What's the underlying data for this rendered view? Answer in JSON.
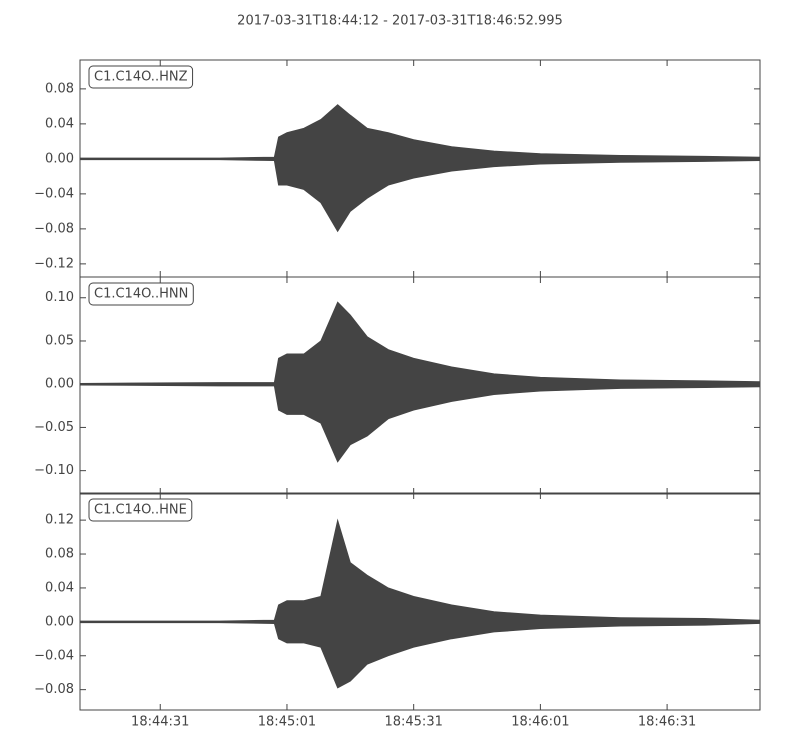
{
  "chart_data": {
    "type": "line",
    "title": "2017-03-31T18:44:12  -  2017-03-31T18:46:52.995",
    "color": "#444444",
    "x": [
      "18:44:12",
      "18:44:45",
      "18:44:58",
      "18:44:59",
      "18:45:01",
      "18:45:05",
      "18:45:09",
      "18:45:13",
      "18:45:16",
      "18:45:20",
      "18:45:25",
      "18:45:31",
      "18:45:40",
      "18:45:50",
      "18:46:01",
      "18:46:20",
      "18:46:40",
      "18:46:52.995"
    ],
    "xlim": [
      "18:44:12",
      "18:46:52.995"
    ],
    "xticks": [
      "18:44:31",
      "18:45:01",
      "18:45:31",
      "18:46:01",
      "18:46:31"
    ],
    "panels": [
      {
        "label": "C1.C14O..HNZ",
        "upper": [
          0.001,
          0.001,
          0.002,
          0.025,
          0.03,
          0.035,
          0.045,
          0.062,
          0.05,
          0.035,
          0.03,
          0.022,
          0.014,
          0.009,
          0.006,
          0.004,
          0.003,
          0.002
        ],
        "lower": [
          -0.001,
          -0.001,
          -0.002,
          -0.03,
          -0.03,
          -0.035,
          -0.05,
          -0.083,
          -0.06,
          -0.045,
          -0.03,
          -0.022,
          -0.014,
          -0.009,
          -0.006,
          -0.004,
          -0.003,
          -0.002
        ],
        "ylim": [
          -0.135,
          0.113
        ],
        "yticks": [
          {
            "value": -0.12,
            "label": "−0.12"
          },
          {
            "value": -0.08,
            "label": "−0.08"
          },
          {
            "value": -0.04,
            "label": "−0.04"
          },
          {
            "value": 0,
            "label": "0.00"
          },
          0.04,
          0.08
        ]
      },
      {
        "label": "C1.C14O..HNN",
        "upper": [
          0.001,
          0.002,
          0.002,
          0.03,
          0.035,
          0.035,
          0.05,
          0.095,
          0.08,
          0.055,
          0.04,
          0.03,
          0.02,
          0.012,
          0.008,
          0.005,
          0.004,
          0.003
        ],
        "lower": [
          -0.001,
          -0.002,
          -0.002,
          -0.03,
          -0.035,
          -0.035,
          -0.045,
          -0.09,
          -0.07,
          -0.06,
          -0.04,
          -0.03,
          -0.02,
          -0.012,
          -0.008,
          -0.005,
          -0.004,
          -0.003
        ],
        "ylim": [
          -0.127,
          0.124
        ],
        "yticks": [
          {
            "value": -0.1,
            "label": "−0.10"
          },
          {
            "value": -0.05,
            "label": "−0.05"
          },
          {
            "value": 0,
            "label": "0.00"
          },
          0.05,
          {
            "value": 0.1,
            "label": "0.10"
          }
        ]
      },
      {
        "label": "C1.C14O..HNE",
        "upper": [
          0.001,
          0.001,
          0.002,
          0.02,
          0.025,
          0.025,
          0.03,
          0.12,
          0.07,
          0.055,
          0.04,
          0.03,
          0.02,
          0.012,
          0.008,
          0.005,
          0.004,
          0.002
        ],
        "lower": [
          -0.001,
          -0.001,
          -0.002,
          -0.02,
          -0.025,
          -0.025,
          -0.03,
          -0.078,
          -0.07,
          -0.05,
          -0.04,
          -0.03,
          -0.02,
          -0.012,
          -0.008,
          -0.005,
          -0.004,
          -0.002
        ],
        "ylim": [
          -0.104,
          0.152
        ],
        "yticks": [
          {
            "value": -0.08,
            "label": "−0.08"
          },
          {
            "value": -0.04,
            "label": "−0.04"
          },
          {
            "value": 0,
            "label": "0.00"
          },
          0.04,
          0.08,
          0.12
        ]
      }
    ]
  }
}
